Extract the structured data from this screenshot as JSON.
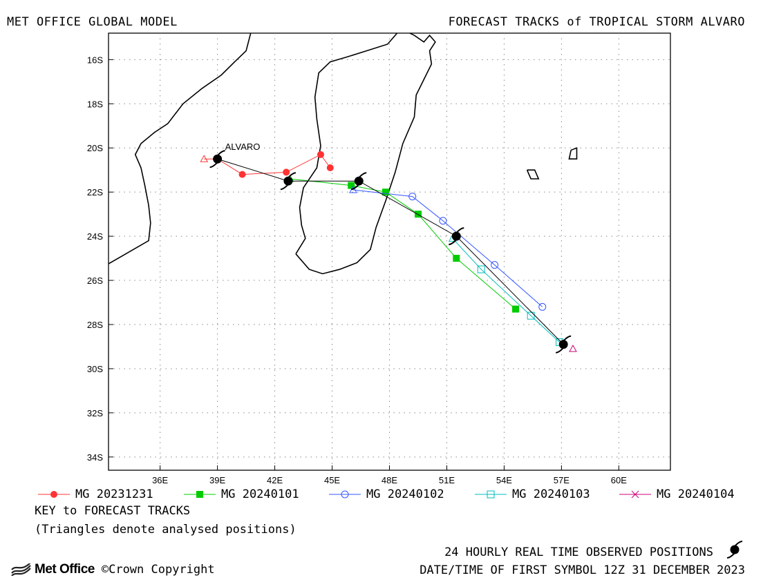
{
  "header": {
    "left_title": "MET OFFICE GLOBAL MODEL",
    "right_title": "FORECAST TRACKS of TROPICAL STORM ALVARO"
  },
  "map": {
    "storm_label": "ALVARO",
    "lon_ticks": [
      "36E",
      "39E",
      "42E",
      "45E",
      "48E",
      "51E",
      "54E",
      "57E",
      "60E"
    ],
    "lat_ticks": [
      "16S",
      "18S",
      "20S",
      "22S",
      "24S",
      "26S",
      "28S",
      "30S",
      "32S",
      "34S"
    ]
  },
  "chart_data": {
    "type": "scatter",
    "title": "FORECAST TRACKS of TROPICAL STORM ALVARO",
    "xlim": [
      33.3,
      62.7
    ],
    "ylim": [
      -34.6,
      -14.8
    ],
    "observed": {
      "name": "24 HOURLY REAL TIME OBSERVED POSITIONS",
      "points": [
        [
          39.0,
          -20.5
        ],
        [
          42.7,
          -21.5
        ],
        [
          46.4,
          -21.5
        ],
        [
          51.5,
          -24.0
        ],
        [
          57.1,
          -28.9
        ]
      ]
    },
    "series": [
      {
        "name": "MG 20231231",
        "color": "#ff3333",
        "marker": "filled-circle",
        "analysed": [
          38.3,
          -20.5
        ],
        "points": [
          [
            39.0,
            -20.5
          ],
          [
            40.3,
            -21.2
          ],
          [
            42.6,
            -21.1
          ],
          [
            44.4,
            -20.3
          ],
          [
            44.9,
            -20.9
          ]
        ]
      },
      {
        "name": "MG 20240101",
        "color": "#00cc00",
        "marker": "filled-square",
        "analysed": [
          42.8,
          -21.4
        ],
        "points": [
          [
            42.8,
            -21.4
          ],
          [
            46.0,
            -21.7
          ],
          [
            47.8,
            -22.0
          ],
          [
            49.5,
            -23.0
          ],
          [
            51.5,
            -25.0
          ],
          [
            54.6,
            -27.3
          ]
        ]
      },
      {
        "name": "MG 20240102",
        "color": "#3355ff",
        "marker": "open-circle",
        "analysed": [
          46.1,
          -21.9
        ],
        "points": [
          [
            46.1,
            -21.9
          ],
          [
            49.2,
            -22.2
          ],
          [
            50.8,
            -23.3
          ],
          [
            53.5,
            -25.3
          ],
          [
            56.0,
            -27.2
          ]
        ]
      },
      {
        "name": "MG 20240103",
        "color": "#00bbbb",
        "marker": "open-square",
        "analysed": [
          51.3,
          -24.1
        ],
        "points": [
          [
            51.3,
            -24.1
          ],
          [
            52.8,
            -25.5
          ],
          [
            55.4,
            -27.6
          ],
          [
            56.9,
            -28.8
          ]
        ]
      },
      {
        "name": "MG 20240104",
        "color": "#cc0077",
        "marker": "cross",
        "analysed": [
          57.6,
          -29.1
        ],
        "points": []
      }
    ]
  },
  "legend": [
    {
      "label": "MG 20231231",
      "color": "#ff3333",
      "marker": "filled-circle"
    },
    {
      "label": "MG 20240101",
      "color": "#00cc00",
      "marker": "filled-square"
    },
    {
      "label": "MG 20240102",
      "color": "#3355ff",
      "marker": "open-circle"
    },
    {
      "label": "MG 20240103",
      "color": "#00bbbb",
      "marker": "open-square"
    },
    {
      "label": "MG 20240104",
      "color": "#cc0077",
      "marker": "cross"
    }
  ],
  "key": {
    "title": "KEY to FORECAST TRACKS",
    "note": "(Triangles denote analysed positions)"
  },
  "footer": {
    "observed_label": "24 HOURLY REAL TIME OBSERVED POSITIONS",
    "datetime_label": "DATE/TIME OF FIRST SYMBOL 12Z 31 DECEMBER 2023",
    "brand": "Met Office",
    "copyright": "©Crown Copyright"
  }
}
